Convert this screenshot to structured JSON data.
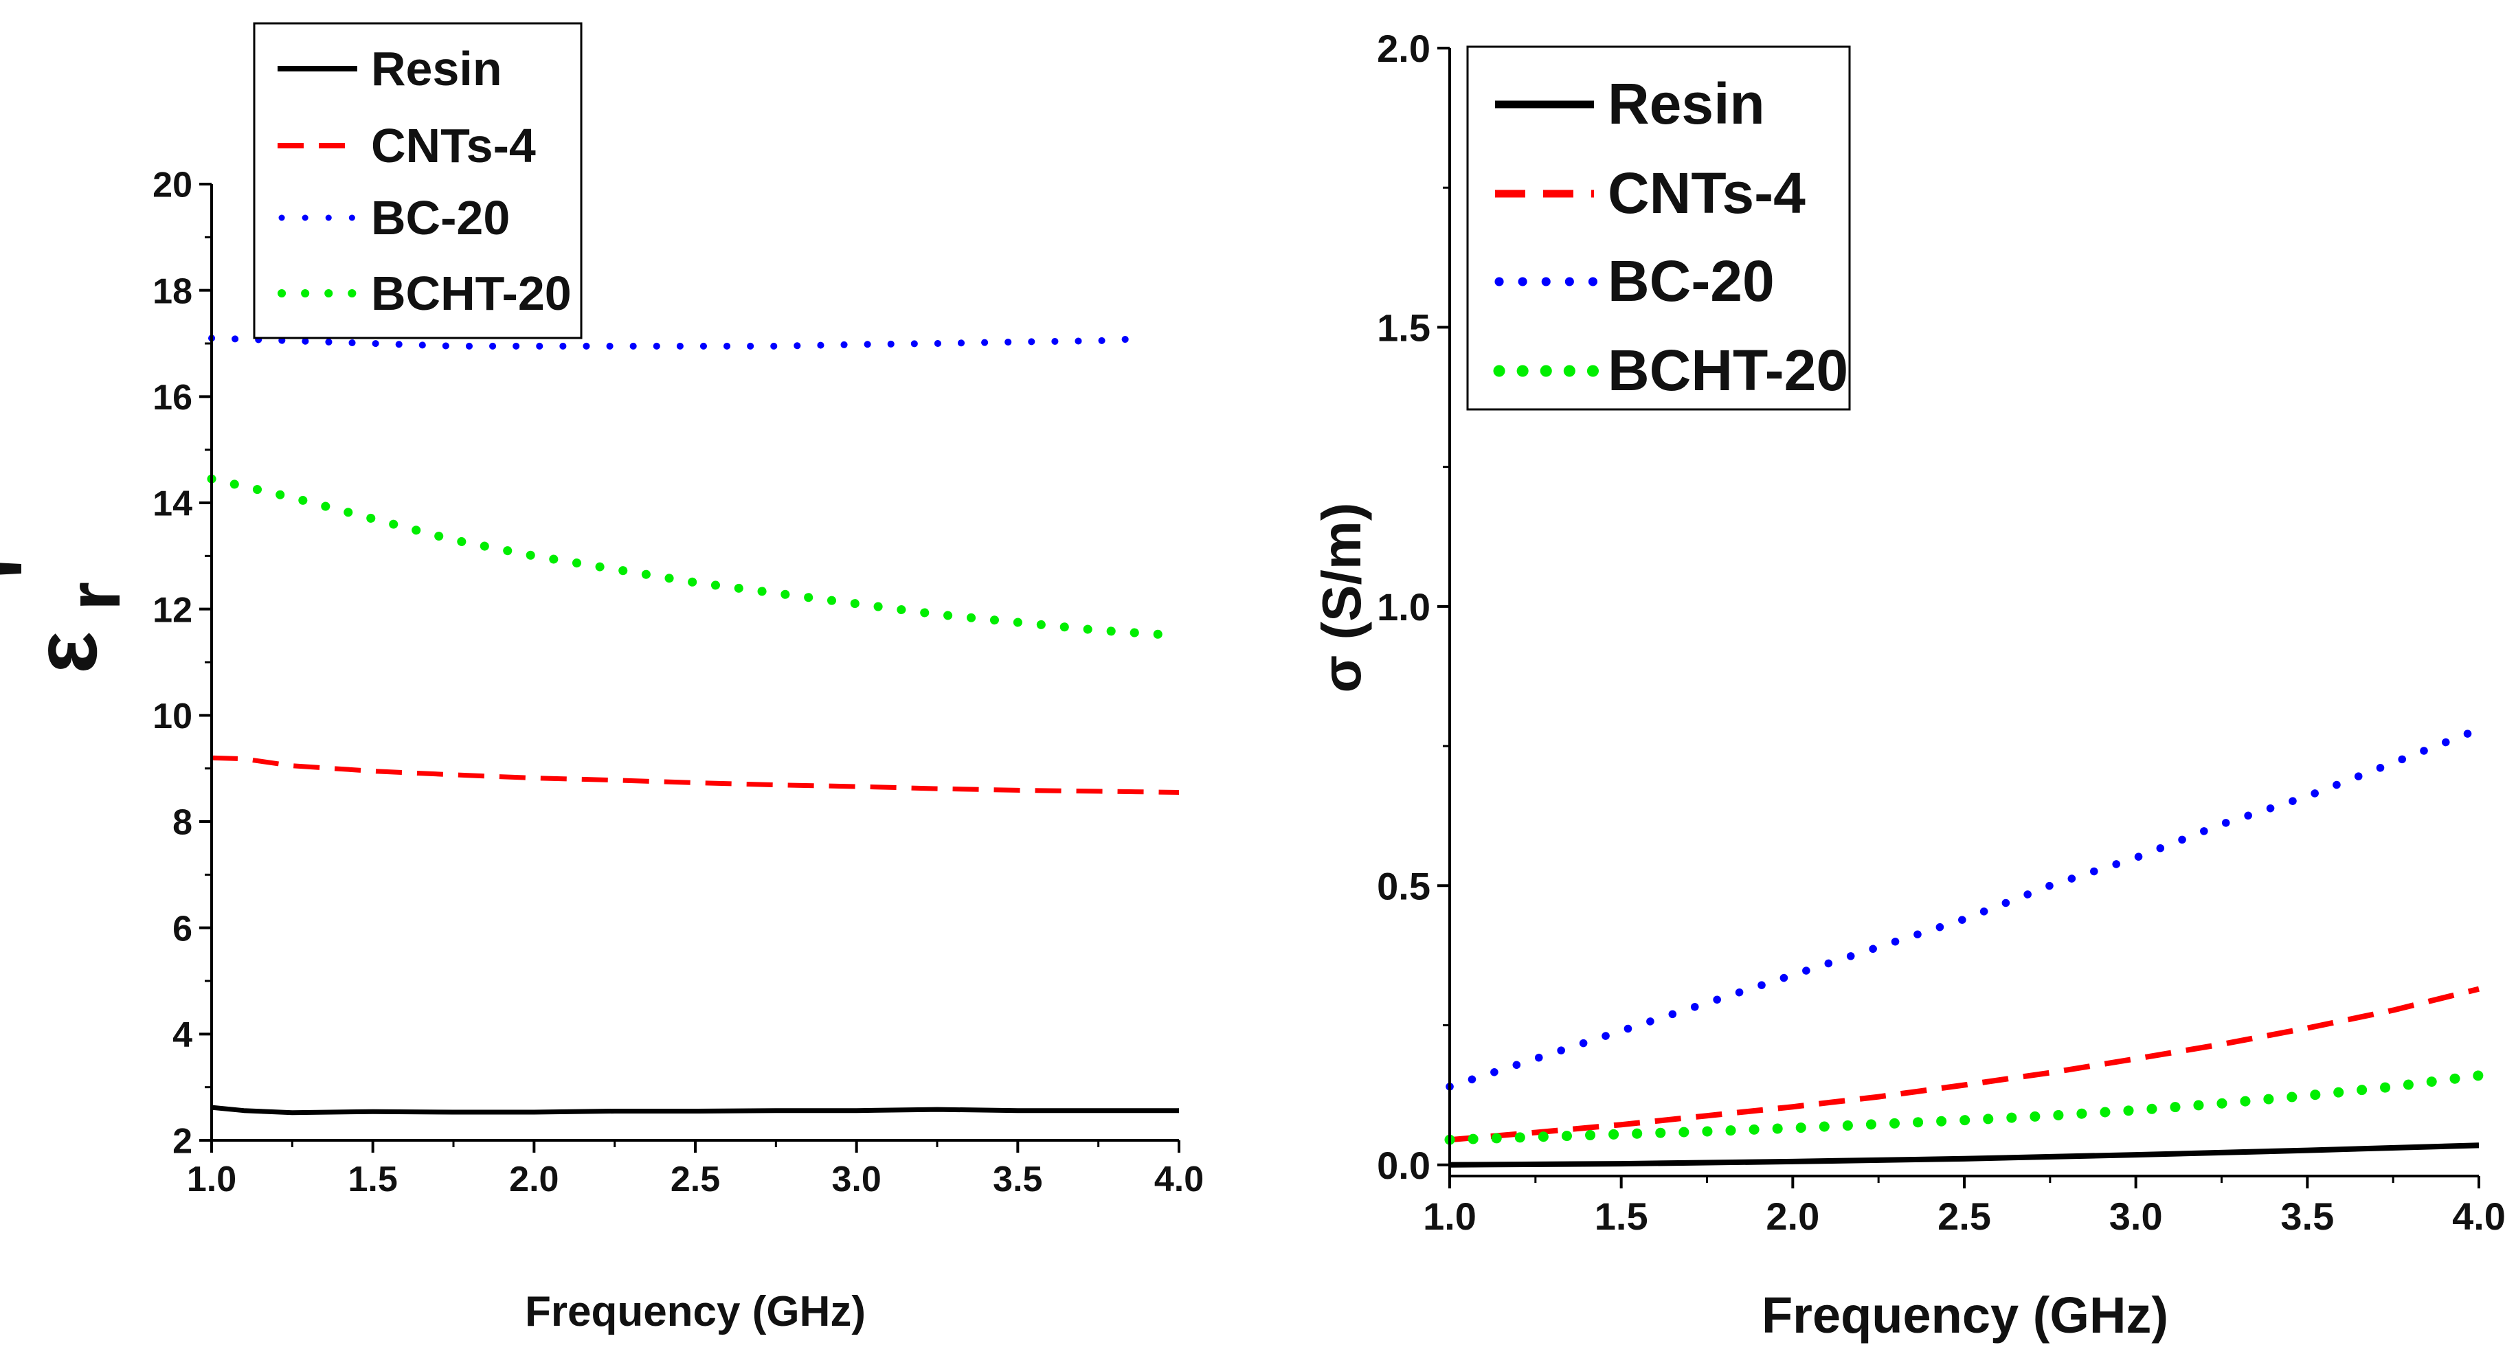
{
  "charts": [
    {
      "type": "line",
      "x_label": "Frequency (GHz)",
      "y_label_main": "ε",
      "y_label_sub": "r",
      "y_label_prime": "'",
      "xlim": [
        1.0,
        4.0
      ],
      "ylim": [
        2,
        20
      ],
      "x_ticks": [
        "1.0",
        "1.5",
        "2.0",
        "2.5",
        "3.0",
        "3.5",
        "4.0"
      ],
      "y_ticks": [
        "2",
        "4",
        "6",
        "8",
        "10",
        "12",
        "14",
        "16",
        "18",
        "20"
      ],
      "legend": [
        "Resin",
        "CNTs-4",
        "BC-20",
        "BCHT-20"
      ]
    },
    {
      "type": "line",
      "x_label": "Frequency (GHz)",
      "y_label": "σ (S/m)",
      "xlim": [
        1.0,
        4.0
      ],
      "ylim": [
        -0.02,
        2.0
      ],
      "x_ticks": [
        "1.0",
        "1.5",
        "2.0",
        "2.5",
        "3.0",
        "3.5",
        "4.0"
      ],
      "y_ticks": [
        "0.0",
        "0.5",
        "1.0",
        "1.5",
        "2.0"
      ],
      "legend": [
        "Resin",
        "CNTs-4",
        "BC-20",
        "BCHT-20"
      ]
    }
  ],
  "colors": {
    "Resin": "#000000",
    "CNTs-4": "#ff0000",
    "BC-20": "#0000ff",
    "BCHT-20": "#00ee00"
  },
  "chart_data": [
    {
      "type": "line",
      "title": "",
      "xlabel": "Frequency (GHz)",
      "ylabel": "εr'",
      "xlim": [
        1.0,
        4.0
      ],
      "ylim": [
        2,
        20
      ],
      "x": [
        1.0,
        1.25,
        1.5,
        1.75,
        2.0,
        2.25,
        2.5,
        2.75,
        3.0,
        3.25,
        3.5,
        3.75,
        4.0
      ],
      "series": [
        {
          "name": "Resin",
          "style": "solid",
          "x": [
            1.0,
            1.1,
            1.25,
            1.5,
            1.75,
            2.0,
            2.25,
            2.5,
            2.75,
            3.0,
            3.25,
            3.5,
            3.75,
            4.0
          ],
          "values": [
            2.62,
            2.56,
            2.52,
            2.54,
            2.53,
            2.53,
            2.55,
            2.55,
            2.56,
            2.56,
            2.58,
            2.56,
            2.56,
            2.56
          ]
        },
        {
          "name": "CNTs-4",
          "style": "dash",
          "x": [
            1.0,
            1.1,
            1.25,
            1.5,
            1.75,
            2.0,
            2.25,
            2.5,
            2.75,
            3.0,
            3.25,
            3.5,
            3.75,
            4.0
          ],
          "values": [
            9.2,
            9.18,
            9.05,
            8.95,
            8.88,
            8.82,
            8.78,
            8.73,
            8.69,
            8.66,
            8.62,
            8.59,
            8.57,
            8.55
          ]
        },
        {
          "name": "BC-20",
          "style": "dot",
          "x": [
            1.0,
            1.25,
            1.5,
            1.75,
            2.0,
            2.25,
            2.5,
            2.75,
            3.0,
            3.25,
            3.5,
            3.75,
            3.9
          ],
          "values": [
            17.1,
            17.05,
            17.0,
            16.95,
            16.95,
            16.95,
            16.95,
            16.95,
            16.98,
            17.0,
            17.03,
            17.05,
            17.1
          ]
        },
        {
          "name": "BCHT-20",
          "style": "dot",
          "x": [
            1.0,
            1.25,
            1.5,
            1.75,
            2.0,
            2.25,
            2.5,
            2.75,
            3.0,
            3.25,
            3.5,
            3.75,
            4.0
          ],
          "values": [
            14.45,
            14.1,
            13.7,
            13.3,
            13.0,
            12.75,
            12.5,
            12.3,
            12.1,
            11.9,
            11.75,
            11.6,
            11.5
          ]
        }
      ],
      "legend_position": "top"
    },
    {
      "type": "line",
      "title": "",
      "xlabel": "Frequency (GHz)",
      "ylabel": "σ (S/m)",
      "xlim": [
        1.0,
        4.0
      ],
      "ylim": [
        -0.02,
        2.0
      ],
      "x": [
        1.0,
        1.25,
        1.5,
        1.75,
        2.0,
        2.25,
        2.5,
        2.75,
        3.0,
        3.25,
        3.5,
        3.75,
        4.0
      ],
      "series": [
        {
          "name": "Resin",
          "style": "solid",
          "x": [
            1.0,
            1.5,
            2.0,
            2.5,
            3.0,
            3.5,
            4.0
          ],
          "values": [
            0.0,
            0.002,
            0.006,
            0.011,
            0.018,
            0.026,
            0.035
          ]
        },
        {
          "name": "CNTs-4",
          "style": "dash",
          "x": [
            1.0,
            1.25,
            1.5,
            1.75,
            2.0,
            2.25,
            2.5,
            2.75,
            3.0,
            3.25,
            3.5,
            3.75,
            4.0
          ],
          "values": [
            0.045,
            0.058,
            0.072,
            0.088,
            0.104,
            0.122,
            0.143,
            0.165,
            0.19,
            0.216,
            0.245,
            0.277,
            0.315
          ]
        },
        {
          "name": "BC-20",
          "style": "dot",
          "x": [
            1.0,
            1.25,
            1.5,
            1.75,
            2.0,
            2.25,
            2.5,
            2.75,
            3.0,
            3.25,
            3.5,
            3.75,
            4.0
          ],
          "values": [
            0.14,
            0.19,
            0.24,
            0.29,
            0.34,
            0.39,
            0.44,
            0.5,
            0.55,
            0.61,
            0.66,
            0.72,
            0.78
          ]
        },
        {
          "name": "BCHT-20",
          "style": "dot",
          "x": [
            1.0,
            1.25,
            1.5,
            1.75,
            2.0,
            2.25,
            2.5,
            2.75,
            3.0,
            3.25,
            3.5,
            3.75,
            4.0
          ],
          "values": [
            0.045,
            0.05,
            0.055,
            0.06,
            0.066,
            0.073,
            0.08,
            0.088,
            0.098,
            0.11,
            0.124,
            0.14,
            0.16
          ]
        }
      ],
      "legend_position": "top"
    }
  ]
}
